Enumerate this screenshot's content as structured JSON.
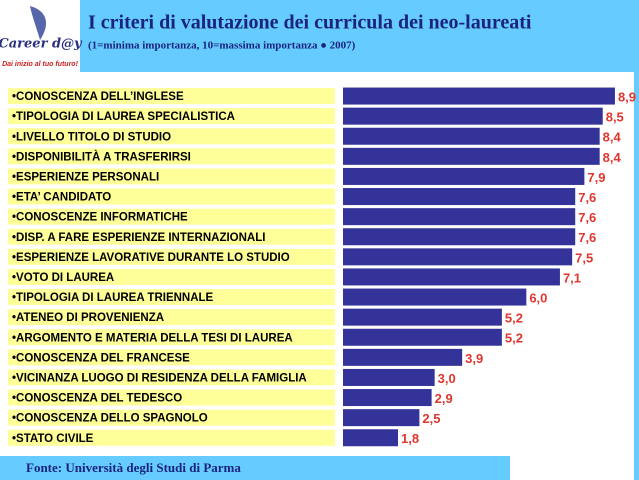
{
  "chart_data": {
    "type": "bar",
    "orientation": "horizontal",
    "title": "I criteri di valutazione dei curricula dei neo-laureati",
    "subtitle": "(1=minima importanza, 10=massima importanza ● 2007)",
    "logo": {
      "name": "Career d@y",
      "tagline": "Dai inizio al tuo futuro!"
    },
    "source": "Fonte: Università degli Studi di Parma",
    "categories": [
      "•CONOSCENZA DELL’INGLESE",
      "•TIPOLOGIA DI LAUREA SPECIALISTICA",
      "•LIVELLO TITOLO DI STUDIO",
      "•DISPONIBILITÀ A TRASFERIRSI",
      "•ESPERIENZE PERSONALI",
      "•ETA’ CANDIDATO",
      "•CONOSCENZE INFORMATICHE",
      "•DISP. A FARE ESPERIENZE INTERNAZIONALI",
      "•ESPERIENZE LAVORATIVE DURANTE LO STUDIO",
      "•VOTO DI LAUREA",
      "•TIPOLOGIA DI LAUREA TRIENNALE",
      "•ATENEO DI PROVENIENZA",
      "•ARGOMENTO E MATERIA DELLA TESI DI LAUREA",
      "•CONOSCENZA DEL FRANCESE",
      "•VICINANZA LUOGO DI RESIDENZA DELLA FAMIGLIA",
      "•CONOSCENZA DEL TEDESCO",
      "•CONOSCENZA DELLO SPAGNOLO",
      "•STATO CIVILE"
    ],
    "values": [
      8.9,
      8.5,
      8.4,
      8.4,
      7.9,
      7.6,
      7.6,
      7.6,
      7.5,
      7.1,
      6.0,
      5.2,
      5.2,
      3.9,
      3.0,
      2.9,
      2.5,
      1.8
    ],
    "value_labels": [
      "8,9",
      "8,5",
      "8,4",
      "8,4",
      "7,9",
      "7,6",
      "7,6",
      "7,6",
      "7,5",
      "7,1",
      "6,0",
      "5,2",
      "5,2",
      "3,9",
      "3,0",
      "2,9",
      "2,5",
      "1,8"
    ],
    "color": "#333399",
    "label_color": "#e0362e",
    "xlim": [
      0,
      9
    ]
  }
}
